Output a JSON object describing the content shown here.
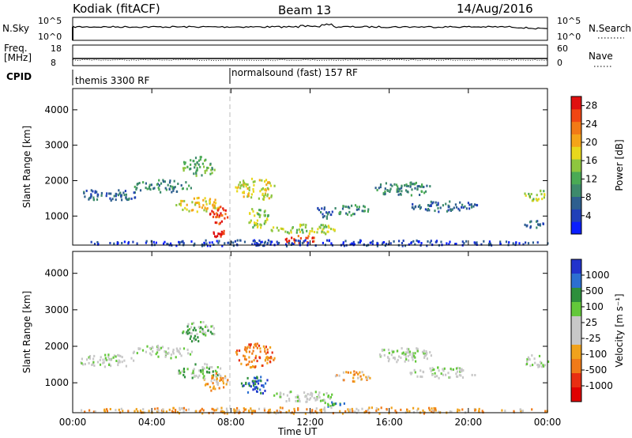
{
  "header": {
    "station": "Kodiak (fitACF)",
    "beam": "Beam 13",
    "date": "14/Aug/2016"
  },
  "summary": {
    "nsky_label": "N.Sky",
    "nsky_ticks": [
      "10^5",
      "10^0"
    ],
    "nsearch_label": "N.Search",
    "nsearch_ticks": [
      "10^5",
      "10^0"
    ],
    "freq_label": "Freq.",
    "freq_unit": "[MHz]",
    "freq_ticks": [
      "18",
      "8"
    ],
    "nave_label": "Nave",
    "nave_ticks": [
      "60",
      "0"
    ],
    "cpid_label": "CPID",
    "cpid_modes": [
      {
        "name": "themis 3300 RF",
        "start_hour": 0
      },
      {
        "name": "normalsound (fast) 157 RF",
        "start_hour": 8
      }
    ]
  },
  "chart_data": [
    {
      "type": "heatmap",
      "panel": "power",
      "ylabel": "Slant Range [km]",
      "xlabel": "",
      "x_ticks": [
        "00:00",
        "04:00",
        "08:00",
        "12:00",
        "16:00",
        "20:00",
        "00:00"
      ],
      "xlim_hours": [
        0,
        24
      ],
      "y_ticks": [
        1000,
        2000,
        3000,
        4000
      ],
      "ylim_km": [
        180,
        4600
      ],
      "colorbar": {
        "label": "Power [dB]",
        "ticks": [
          4,
          8,
          12,
          16,
          20,
          24,
          28
        ],
        "range": [
          0,
          30
        ],
        "colors": [
          "#0a1eff",
          "#2140b8",
          "#2e5f8f",
          "#3d8a6c",
          "#4aaa55",
          "#8ec63f",
          "#e8d81c",
          "#f5a418",
          "#f27a16",
          "#f04614",
          "#e01010"
        ]
      },
      "regions": [
        {
          "t0": 0.3,
          "t1": 3.2,
          "r0": 1450,
          "r1": 1800,
          "level": 2
        },
        {
          "t0": 3.0,
          "t1": 6.0,
          "r0": 1700,
          "r1": 2050,
          "level": 3
        },
        {
          "t0": 5.5,
          "t1": 7.2,
          "r0": 2150,
          "r1": 2700,
          "level": 4
        },
        {
          "t0": 5.2,
          "t1": 7.5,
          "r0": 1150,
          "r1": 1550,
          "level": 6
        },
        {
          "t0": 6.8,
          "t1": 7.8,
          "r0": 800,
          "r1": 1300,
          "level": 9
        },
        {
          "t0": 7.0,
          "t1": 7.7,
          "r0": 420,
          "r1": 650,
          "level": 10
        },
        {
          "t0": 8.2,
          "t1": 10.2,
          "r0": 1450,
          "r1": 2100,
          "level": 6
        },
        {
          "t0": 8.7,
          "t1": 9.9,
          "r0": 700,
          "r1": 1250,
          "level": 5
        },
        {
          "t0": 10.0,
          "t1": 13.4,
          "r0": 500,
          "r1": 800,
          "level": 5
        },
        {
          "t0": 10.5,
          "t1": 12.3,
          "r0": 260,
          "r1": 480,
          "level": 9
        },
        {
          "t0": 12.2,
          "t1": 13.2,
          "r0": 950,
          "r1": 1300,
          "level": 2
        },
        {
          "t0": 13.2,
          "t1": 15.0,
          "r0": 1050,
          "r1": 1350,
          "level": 3
        },
        {
          "t0": 15.2,
          "t1": 18.2,
          "r0": 1600,
          "r1": 2000,
          "level": 3
        },
        {
          "t0": 17.0,
          "t1": 20.5,
          "r0": 1150,
          "r1": 1450,
          "level": 2
        },
        {
          "t0": 22.8,
          "t1": 24.0,
          "r0": 1450,
          "r1": 1800,
          "level": 5
        },
        {
          "t0": 22.8,
          "t1": 23.8,
          "r0": 700,
          "r1": 900,
          "level": 2
        },
        {
          "t0": 0.0,
          "t1": 24.0,
          "r0": 180,
          "r1": 350,
          "level": 1
        }
      ]
    },
    {
      "type": "heatmap",
      "panel": "velocity",
      "ylabel": "Slant Range [km]",
      "xlabel": "Time UT",
      "x_ticks": [
        "00:00",
        "04:00",
        "08:00",
        "12:00",
        "16:00",
        "20:00",
        "00:00"
      ],
      "xlim_hours": [
        0,
        24
      ],
      "y_ticks": [
        1000,
        2000,
        3000,
        4000
      ],
      "ylim_km": [
        180,
        4600
      ],
      "colorbar": {
        "label": "Velocity [m s⁻¹]",
        "ticks": [
          "1000",
          "500",
          "100",
          "25",
          "-25",
          "-100",
          "-500",
          "-1000"
        ],
        "colors": [
          "#2233cc",
          "#2c6fd1",
          "#2e8f3c",
          "#63c83a",
          "#c8c8c8",
          "#c8c8c8",
          "#f0a21c",
          "#f07a18",
          "#e82e12",
          "#e00000"
        ]
      },
      "regions": [
        {
          "t0": 0.3,
          "t1": 3.2,
          "r0": 1450,
          "r1": 1800,
          "level": 4
        },
        {
          "t0": 3.0,
          "t1": 6.0,
          "r0": 1700,
          "r1": 2050,
          "level": 4
        },
        {
          "t0": 5.5,
          "t1": 7.2,
          "r0": 2150,
          "r1": 2700,
          "level": 3
        },
        {
          "t0": 5.2,
          "t1": 7.5,
          "r0": 1150,
          "r1": 1550,
          "level": 3
        },
        {
          "t0": 6.5,
          "t1": 7.8,
          "r0": 800,
          "r1": 1300,
          "level": 6
        },
        {
          "t0": 8.2,
          "t1": 10.2,
          "r0": 1450,
          "r1": 2100,
          "level": 7
        },
        {
          "t0": 8.5,
          "t1": 9.9,
          "r0": 700,
          "r1": 1250,
          "level": 1
        },
        {
          "t0": 10.0,
          "t1": 13.4,
          "r0": 500,
          "r1": 800,
          "level": 4
        },
        {
          "t0": 12.5,
          "t1": 13.8,
          "r0": 350,
          "r1": 500,
          "level": 2
        },
        {
          "t0": 13.2,
          "t1": 15.0,
          "r0": 1050,
          "r1": 1350,
          "level": 6
        },
        {
          "t0": 15.2,
          "t1": 18.2,
          "r0": 1600,
          "r1": 2000,
          "level": 4
        },
        {
          "t0": 17.0,
          "t1": 20.5,
          "r0": 1150,
          "r1": 1450,
          "level": 4
        },
        {
          "t0": 22.8,
          "t1": 24.0,
          "r0": 1450,
          "r1": 1800,
          "level": 4
        },
        {
          "t0": 0.0,
          "t1": 24.0,
          "r0": 180,
          "r1": 350,
          "level": 6
        }
      ]
    }
  ]
}
